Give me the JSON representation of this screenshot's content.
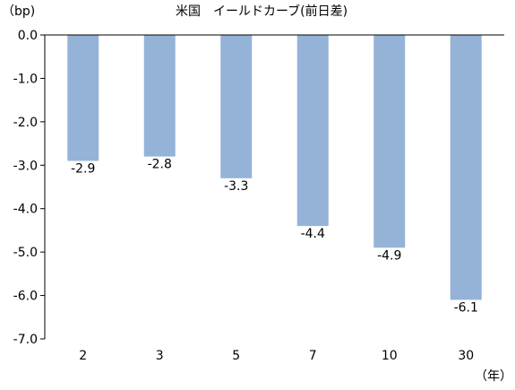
{
  "chart_data": {
    "type": "bar",
    "title": "米国　イールドカーブ(前日差)",
    "ylabel": "（bp)",
    "xlabel": "（年）",
    "categories": [
      "2",
      "3",
      "5",
      "7",
      "10",
      "30"
    ],
    "values": [
      -2.9,
      -2.8,
      -3.3,
      -4.4,
      -4.9,
      -6.1
    ],
    "data_labels": [
      "-2.9",
      "-2.8",
      "-3.3",
      "-4.4",
      "-4.9",
      "-6.1"
    ],
    "y_ticks": [
      "0.0",
      "-1.0",
      "-2.0",
      "-3.0",
      "-4.0",
      "-5.0",
      "-6.0",
      "-7.0"
    ],
    "ylim": [
      -7.0,
      0.0
    ],
    "grid": false,
    "legend": "none",
    "colors": {
      "bar": "#95B3D7",
      "axis": "#000000",
      "text": "#000000"
    }
  }
}
